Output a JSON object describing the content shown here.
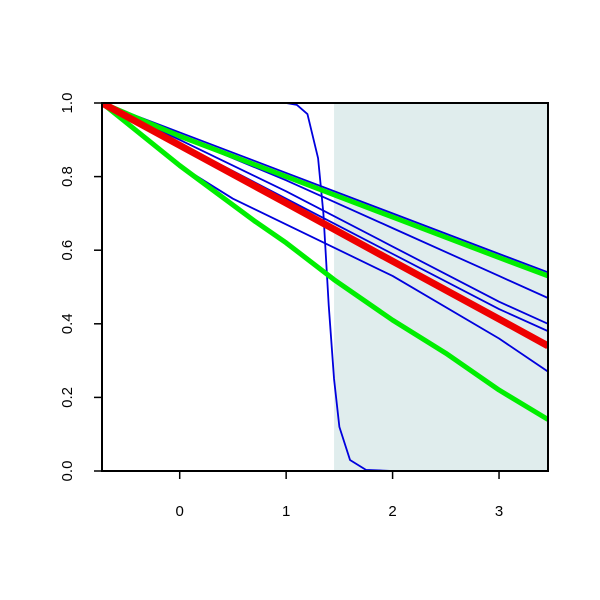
{
  "chart_data": {
    "type": "line",
    "xlim": [
      -0.73,
      3.46
    ],
    "ylim": [
      0,
      1
    ],
    "xticks": [
      0,
      1,
      2,
      3
    ],
    "yticks": [
      {
        "value": 0,
        "label": "0.0"
      },
      0.2,
      0.4,
      0.6,
      0.8,
      {
        "value": 1,
        "label": "1.0"
      }
    ],
    "shade": {
      "x": [
        1.45,
        3.46
      ],
      "color": "#e0eded"
    },
    "series": [
      {
        "color": "#0000dd",
        "width": 1.8,
        "x": [
          -0.73,
          0,
          1,
          2,
          3,
          3.46
        ],
        "values": [
          1,
          0.92,
          0.81,
          0.7,
          0.59,
          0.54
        ]
      },
      {
        "color": "#0000dd",
        "width": 1.8,
        "x": [
          -0.73,
          0,
          1,
          2,
          3,
          3.46
        ],
        "values": [
          1,
          0.91,
          0.79,
          0.66,
          0.53,
          0.47
        ]
      },
      {
        "color": "#0000dd",
        "width": 1.8,
        "x": [
          -0.73,
          0,
          1,
          2,
          3,
          3.46
        ],
        "values": [
          1,
          0.9,
          0.76,
          0.61,
          0.46,
          0.4
        ]
      },
      {
        "color": "#0000dd",
        "width": 1.8,
        "x": [
          -0.73,
          0,
          1,
          2,
          3,
          3.46
        ],
        "values": [
          1,
          0.89,
          0.74,
          0.59,
          0.44,
          0.38
        ]
      },
      {
        "color": "#0000dd",
        "width": 1.8,
        "x": [
          -0.73,
          0,
          0.5,
          1,
          2,
          3,
          3.46
        ],
        "values": [
          1,
          0.83,
          0.74,
          0.67,
          0.53,
          0.36,
          0.27
        ]
      },
      {
        "color": "#0000dd",
        "width": 1.8,
        "x": [
          -0.73,
          0,
          1,
          1.1,
          1.2,
          1.3,
          1.35,
          1.4,
          1.45,
          1.5,
          1.6,
          1.75,
          2,
          3.46
        ],
        "values": [
          1,
          1,
          1,
          0.995,
          0.97,
          0.85,
          0.7,
          0.45,
          0.25,
          0.12,
          0.03,
          0.003,
          0,
          0
        ]
      },
      {
        "color": "#00ee00",
        "width": 5,
        "x": [
          -0.73,
          0,
          1,
          2,
          3,
          3.46
        ],
        "values": [
          1,
          0.91,
          0.8,
          0.69,
          0.58,
          0.53
        ]
      },
      {
        "color": "#00ee00",
        "width": 5,
        "x": [
          -0.73,
          0,
          0.7,
          1,
          1.45,
          2,
          2.5,
          3,
          3.46
        ],
        "values": [
          1,
          0.83,
          0.68,
          0.62,
          0.52,
          0.41,
          0.32,
          0.22,
          0.14
        ]
      },
      {
        "color": "#ee0000",
        "width": 7,
        "x": [
          -0.73,
          0,
          1,
          2,
          3,
          3.46
        ],
        "values": [
          1,
          0.885,
          0.728,
          0.57,
          0.413,
          0.34
        ]
      }
    ]
  }
}
